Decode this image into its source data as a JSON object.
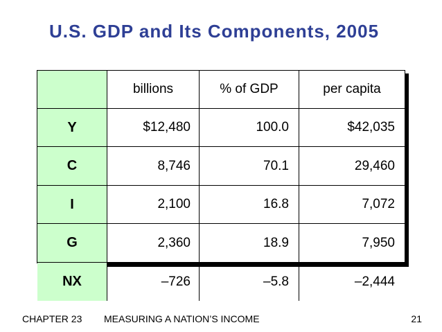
{
  "title": "U.S. GDP and Its Components, 2005",
  "table": {
    "headers": [
      "",
      "billions",
      "% of GDP",
      "per capita"
    ],
    "rows": [
      {
        "label": "Y",
        "billions": "$12,480",
        "pct": "100.0",
        "per_capita": "$42,035"
      },
      {
        "label": "C",
        "billions": "8,746",
        "pct": "70.1",
        "per_capita": "29,460"
      },
      {
        "label": "I",
        "billions": "2,100",
        "pct": "16.8",
        "per_capita": "7,072"
      },
      {
        "label": "G",
        "billions": "2,360",
        "pct": "18.9",
        "per_capita": "7,950"
      },
      {
        "label": "NX",
        "billions": "–726",
        "pct": "–5.8",
        "per_capita": "–2,444"
      }
    ]
  },
  "footer": {
    "chapter": "CHAPTER 23",
    "subject": "MEASURING A NATION’S INCOME",
    "page": "21"
  },
  "colors": {
    "title": "#2e3f95",
    "label_fill": "#ccffcc",
    "border": "#000000"
  }
}
